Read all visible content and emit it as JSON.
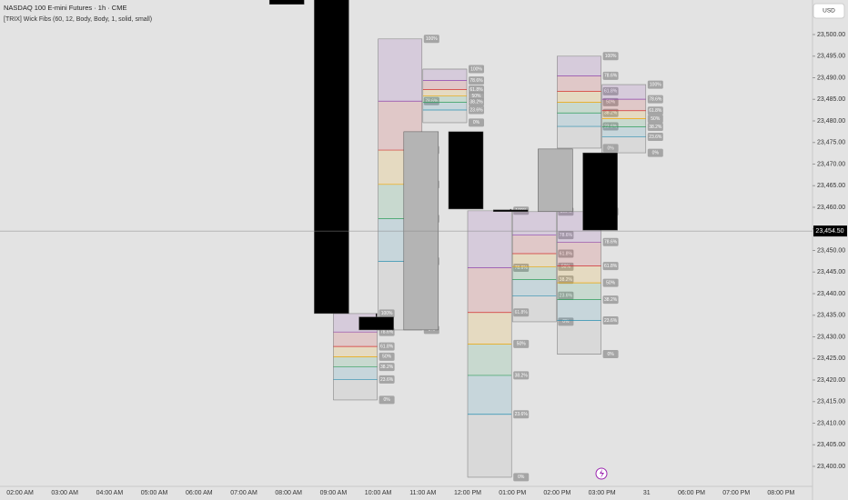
{
  "chart_data": {
    "type": "candlestick",
    "title": "NASDAQ 100 E-mini Futures · 1h · CME",
    "subtitle": "[TRIX] Wick Fibs (60, 12, Body, Body, 1, solid, small)",
    "currency": "USD",
    "categories": [
      "02:00 AM",
      "03:00 AM",
      "04:00 AM",
      "05:00 AM",
      "06:00 AM",
      "07:00 AM",
      "08:00 AM",
      "09:00 AM",
      "10:00 AM",
      "11:00 AM",
      "12:00 PM",
      "01:00 PM",
      "02:00 PM",
      "03:00 PM",
      "31",
      "06:00 PM",
      "07:00 PM",
      "08:00 PM"
    ],
    "candles": [
      {
        "x": "08:00 AM",
        "open": 23510,
        "high": 23510,
        "low": 23507,
        "close": 23507
      },
      {
        "x": "09:00 AM",
        "open": 23512,
        "high": 23512,
        "low": 23435.4,
        "close": 23435.4
      },
      {
        "x": "10:00 AM",
        "open": 23434.6,
        "high": 23435.4,
        "low": 23431.6,
        "close": 23431.6
      },
      {
        "x": "11:00 AM",
        "open": 23431.6,
        "high": 23477.5,
        "low": 23431.6,
        "close": 23477.5
      },
      {
        "x": "12:00 PM",
        "open": 23477.5,
        "high": 23477.5,
        "low": 23459.6,
        "close": 23459.6
      },
      {
        "x": "01:00 PM",
        "open": 23459.4,
        "high": 23459.6,
        "low": 23459,
        "close": 23459
      },
      {
        "x": "02:00 PM",
        "open": 23459,
        "high": 23473.5,
        "low": 23459,
        "close": 23473.5
      },
      {
        "x": "03:00 PM",
        "open": 23472.6,
        "high": 23472.6,
        "low": 23454.7,
        "close": 23454.7
      }
    ],
    "bullish_color": "#b4b4b4",
    "bearish_color": "#000000",
    "levels": [
      {
        "value": 100,
        "label": "100%"
      },
      {
        "value": 78.6,
        "label": "78.6%"
      },
      {
        "value": 61.8,
        "label": "61.8%"
      },
      {
        "value": 50,
        "label": "50%"
      },
      {
        "value": 38.2,
        "label": "38.2%"
      },
      {
        "value": 23.6,
        "label": "23.6%"
      },
      {
        "value": 0,
        "label": "0%"
      }
    ],
    "level_colors": [
      "#9e9e9e",
      "#8e44ad",
      "#d32f2f",
      "#f0a500",
      "#2e9e5b",
      "#2a8fb0",
      "#9e9e9e"
    ],
    "boxes": [
      {
        "x": "10:00 AM",
        "high": 23499,
        "low": 23431.6
      },
      {
        "x": "11:00 AM",
        "high": 23492,
        "low": 23479.6
      },
      {
        "x": "09:00 AM",
        "high": 23435.4,
        "low": 23415.4
      },
      {
        "x": "12:00 PM",
        "high": 23459.2,
        "low": 23397.5
      },
      {
        "x": "01:00 PM",
        "high": 23459,
        "low": 23433.5
      },
      {
        "x": "02:00 PM",
        "high": 23459,
        "low": 23426
      },
      {
        "x": "02:00 PM",
        "high": 23495,
        "low": 23473.7
      },
      {
        "x": "03:00 PM",
        "high": 23488.4,
        "low": 23472.6
      }
    ],
    "last": {
      "value": 23454.5,
      "label": "23,454.50"
    },
    "ylim": [
      23395.37,
      23508
    ],
    "yticks": [
      {
        "value": 23400,
        "label": "23,400.00"
      },
      {
        "value": 23405,
        "label": "23,405.00"
      },
      {
        "value": 23410,
        "label": "23,410.00"
      },
      {
        "value": 23415,
        "label": "23,415.00"
      },
      {
        "value": 23420,
        "label": "23,420.00"
      },
      {
        "value": 23425,
        "label": "23,425.00"
      },
      {
        "value": 23430,
        "label": "23,430.00"
      },
      {
        "value": 23435,
        "label": "23,435.00"
      },
      {
        "value": 23440,
        "label": "23,440.00"
      },
      {
        "value": 23445,
        "label": "23,445.00"
      },
      {
        "value": 23450,
        "label": "23,450.00"
      },
      {
        "value": 23455,
        "label": "23,455.00"
      },
      {
        "value": 23460,
        "label": "23,460.00"
      },
      {
        "value": 23465,
        "label": "23,465.00"
      },
      {
        "value": 23470,
        "label": "23,470.00"
      },
      {
        "value": 23475,
        "label": "23,475.00"
      },
      {
        "value": 23480,
        "label": "23,480.00"
      },
      {
        "value": 23485,
        "label": "23,485.00"
      },
      {
        "value": 23490,
        "label": "23,490.00"
      },
      {
        "value": 23495,
        "label": "23,495.00"
      },
      {
        "value": 23500,
        "label": "23,500.00"
      }
    ],
    "grid": false
  }
}
